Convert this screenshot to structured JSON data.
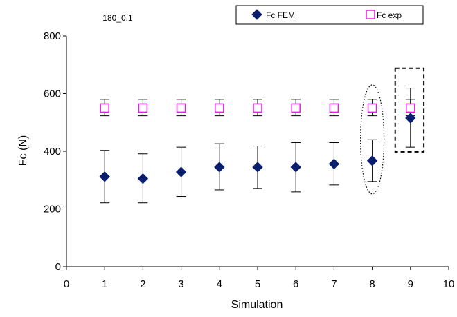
{
  "chart_data": {
    "type": "scatter",
    "title": "180_0.1",
    "xlabel": "Simulation",
    "ylabel": "Fc (N)",
    "xlim": [
      0,
      10
    ],
    "ylim": [
      0,
      800
    ],
    "x_ticks": [
      0,
      1,
      2,
      3,
      4,
      5,
      6,
      7,
      8,
      9,
      10
    ],
    "y_ticks": [
      0,
      200,
      400,
      600,
      800
    ],
    "grid": false,
    "legend_position": "top",
    "series": [
      {
        "name": "Fc FEM",
        "marker": "diamond",
        "color": "#0a1e6e",
        "x": [
          1,
          2,
          3,
          4,
          5,
          6,
          7,
          8,
          9
        ],
        "y": [
          312,
          305,
          328,
          345,
          345,
          345,
          356,
          367,
          515
        ],
        "err_low": [
          221,
          221,
          243,
          266,
          271,
          259,
          283,
          295,
          414
        ],
        "err_high": [
          403,
          391,
          414,
          426,
          418,
          430,
          430,
          440,
          619
        ]
      },
      {
        "name": "Fc exp",
        "marker": "square-open",
        "color": "#e020e0",
        "x": [
          1,
          2,
          3,
          4,
          5,
          6,
          7,
          8,
          9
        ],
        "y": [
          550,
          550,
          550,
          550,
          550,
          550,
          550,
          550,
          550
        ],
        "err_low": [
          523,
          523,
          523,
          523,
          523,
          523,
          523,
          523,
          523
        ],
        "err_high": [
          580,
          580,
          580,
          580,
          580,
          580,
          580,
          580,
          580
        ]
      }
    ],
    "annotations": [
      {
        "shape": "ellipse",
        "style": "dotted",
        "x": 8,
        "y_range": [
          252,
          630
        ]
      },
      {
        "shape": "rectangle",
        "style": "dashed",
        "x_range": [
          8.6,
          9.35
        ],
        "y_range": [
          398,
          688
        ]
      }
    ]
  }
}
